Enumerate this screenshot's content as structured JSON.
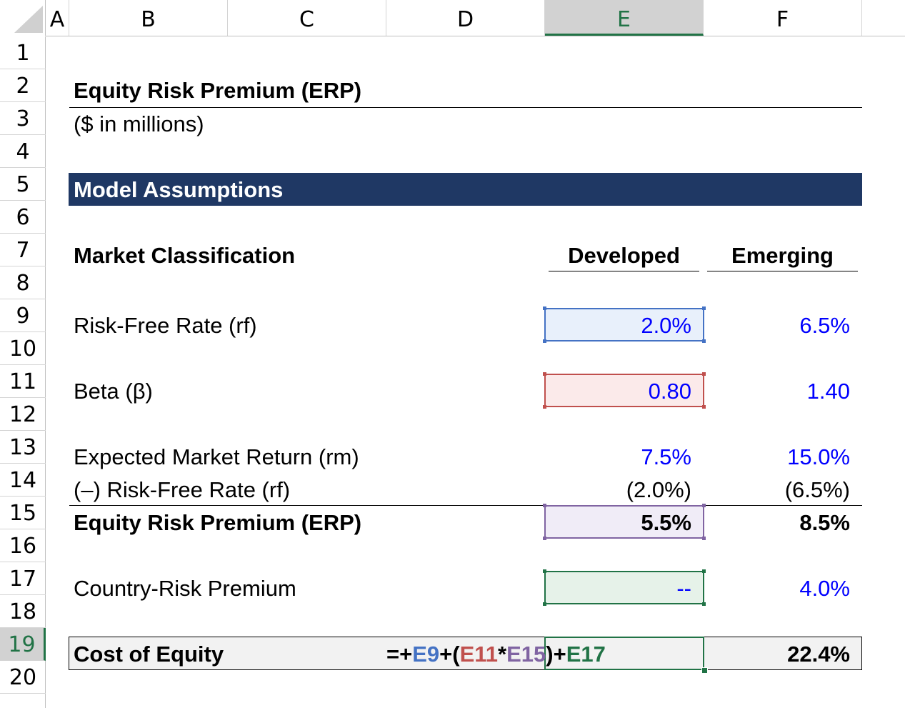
{
  "columns": [
    "A",
    "B",
    "C",
    "D",
    "E",
    "F"
  ],
  "active_column": "E",
  "rows": [
    "1",
    "2",
    "3",
    "4",
    "5",
    "6",
    "7",
    "8",
    "9",
    "10",
    "11",
    "12",
    "13",
    "14",
    "15",
    "16",
    "17",
    "18",
    "19",
    "20"
  ],
  "active_row": "19",
  "title": "Equity Risk Premium (ERP)",
  "subtitle": "($ in millions)",
  "section_header": "Model Assumptions",
  "table": {
    "label_header": "Market Classification",
    "col_developed": "Developed",
    "col_emerging": "Emerging",
    "rows": {
      "rf": {
        "label": "Risk-Free Rate (rf)",
        "developed": "2.0%",
        "emerging": "6.5%"
      },
      "beta": {
        "label": "Beta (β)",
        "developed": "0.80",
        "emerging": "1.40"
      },
      "rm": {
        "label": "Expected Market Return (rm)",
        "developed": "7.5%",
        "emerging": "15.0%"
      },
      "less_rf": {
        "label": "(–) Risk-Free Rate (rf)",
        "developed": "(2.0%)",
        "emerging": "(6.5%)"
      },
      "erp": {
        "label": "Equity Risk Premium (ERP)",
        "developed": "5.5%",
        "emerging": "8.5%"
      },
      "crp": {
        "label": "Country-Risk Premium",
        "developed": "--",
        "emerging": "4.0%"
      },
      "coe": {
        "label": "Cost of Equity",
        "emerging": "22.4%"
      }
    }
  },
  "formula": {
    "prefix": "=+",
    "ref1": "E9",
    "op1": "+(",
    "ref2": "E11",
    "op2": "*",
    "ref3": "E15",
    "op3": ")+",
    "ref4": "E17"
  },
  "colors": {
    "band": "#1f3864",
    "blue_input": "#0000ff",
    "ref_blue": "#4472c4",
    "ref_red": "#c0504d",
    "ref_purple": "#8064a2",
    "ref_green": "#217346",
    "excel_green": "#217346"
  }
}
